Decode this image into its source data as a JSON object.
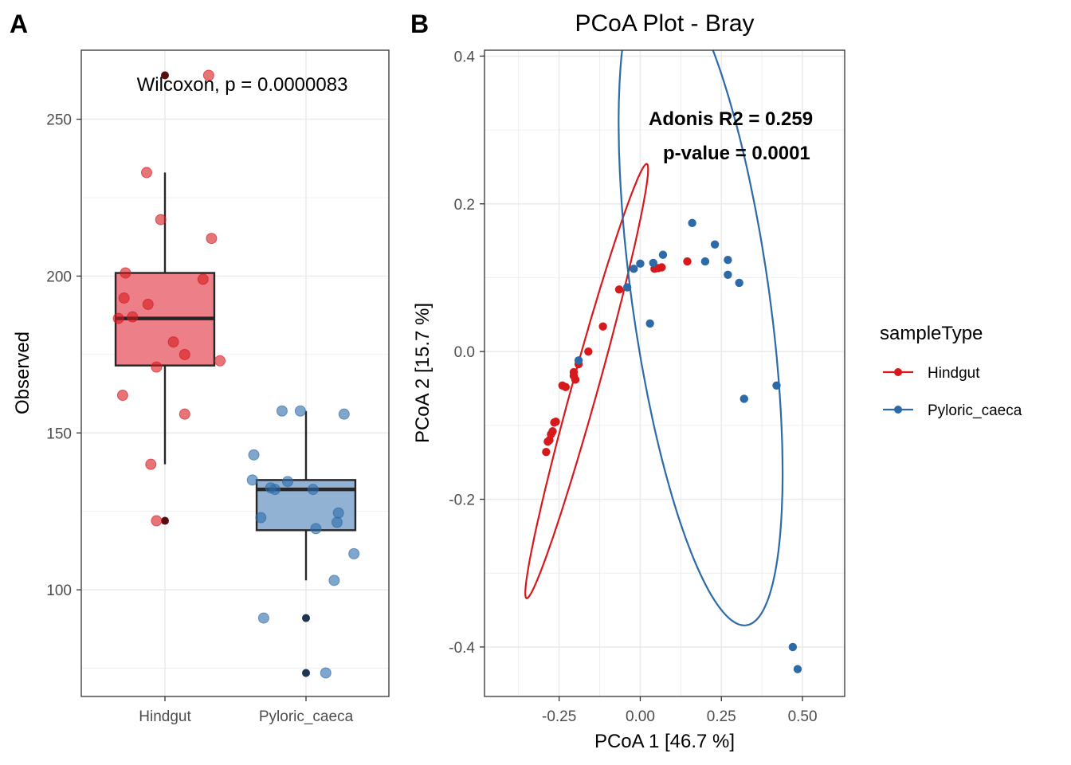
{
  "panel_a": {
    "tag": "A",
    "annotation": "Wilcoxon, p = 0.0000083",
    "ylabel": "Observed"
  },
  "panel_b": {
    "tag": "B",
    "title": "PCoA Plot - Bray",
    "xlabel": "PCoA 1 [46.7 %]",
    "ylabel": "PCoA 2 [15.7 %]",
    "stat_r2": "Adonis R2 = 0.259",
    "stat_p": "p-value = 0.0001"
  },
  "legend": {
    "title": "sampleType",
    "items": [
      {
        "label": "Hindgut",
        "color": "#d7191c"
      },
      {
        "label": "Pyloric_caeca",
        "color": "#2c6aa8"
      }
    ]
  },
  "colors": {
    "hindgut": "#d7191c",
    "pyloric": "#2c6aa8",
    "hindgut_box_fill": "#ec7f88",
    "pyloric_box_fill": "#92b2d4",
    "hindgut_outlier": "#5a0d0f",
    "pyloric_outlier": "#1b3552",
    "grid": "#ebebeb"
  },
  "chart_data": [
    {
      "type": "box",
      "categories": [
        "Hindgut",
        "Pyloric_caeca"
      ],
      "xlabel": "",
      "ylabel": "Observed",
      "ylim": [
        66,
        272
      ],
      "yticks": [
        100,
        150,
        200,
        250
      ],
      "annotation": "Wilcoxon, p = 0.0000083",
      "boxes": [
        {
          "category": "Hindgut",
          "lower_whisker": 140,
          "q1": 171.5,
          "median": 186.5,
          "q3": 201,
          "upper_whisker": 233,
          "outliers": [
            122,
            264
          ]
        },
        {
          "category": "Pyloric_caeca",
          "lower_whisker": 103,
          "q1": 119,
          "median": 132,
          "q3": 135,
          "upper_whisker": 157,
          "outliers": [
            91,
            73.5
          ]
        }
      ],
      "points": [
        {
          "category": "Hindgut",
          "x_offset": -0.33,
          "y": 186.5
        },
        {
          "category": "Hindgut",
          "x_offset": -0.28,
          "y": 201
        },
        {
          "category": "Hindgut",
          "x_offset": -0.29,
          "y": 193
        },
        {
          "category": "Hindgut",
          "x_offset": -0.23,
          "y": 187
        },
        {
          "category": "Hindgut",
          "x_offset": -0.12,
          "y": 191
        },
        {
          "category": "Hindgut",
          "x_offset": -0.13,
          "y": 233
        },
        {
          "category": "Hindgut",
          "x_offset": -0.03,
          "y": 218
        },
        {
          "category": "Hindgut",
          "x_offset": 0.33,
          "y": 212
        },
        {
          "category": "Hindgut",
          "x_offset": 0.27,
          "y": 199
        },
        {
          "category": "Hindgut",
          "x_offset": 0.06,
          "y": 179
        },
        {
          "category": "Hindgut",
          "x_offset": 0.14,
          "y": 175
        },
        {
          "category": "Hindgut",
          "x_offset": -0.06,
          "y": 171
        },
        {
          "category": "Hindgut",
          "x_offset": 0.39,
          "y": 173
        },
        {
          "category": "Hindgut",
          "x_offset": -0.3,
          "y": 162
        },
        {
          "category": "Hindgut",
          "x_offset": 0.14,
          "y": 156
        },
        {
          "category": "Hindgut",
          "x_offset": -0.1,
          "y": 140
        },
        {
          "category": "Hindgut",
          "x_offset": -0.06,
          "y": 122
        },
        {
          "category": "Hindgut",
          "x_offset": 0.31,
          "y": 264
        },
        {
          "category": "Pyloric_caeca",
          "x_offset": -0.17,
          "y": 157
        },
        {
          "category": "Pyloric_caeca",
          "x_offset": -0.04,
          "y": 157
        },
        {
          "category": "Pyloric_caeca",
          "x_offset": 0.27,
          "y": 156
        },
        {
          "category": "Pyloric_caeca",
          "x_offset": -0.37,
          "y": 143
        },
        {
          "category": "Pyloric_caeca",
          "x_offset": -0.38,
          "y": 135
        },
        {
          "category": "Pyloric_caeca",
          "x_offset": -0.13,
          "y": 134.5
        },
        {
          "category": "Pyloric_caeca",
          "x_offset": -0.25,
          "y": 132.5
        },
        {
          "category": "Pyloric_caeca",
          "x_offset": -0.22,
          "y": 132
        },
        {
          "category": "Pyloric_caeca",
          "x_offset": 0.05,
          "y": 132
        },
        {
          "category": "Pyloric_caeca",
          "x_offset": 0.23,
          "y": 124.5
        },
        {
          "category": "Pyloric_caeca",
          "x_offset": -0.32,
          "y": 123
        },
        {
          "category": "Pyloric_caeca",
          "x_offset": 0.22,
          "y": 121.5
        },
        {
          "category": "Pyloric_caeca",
          "x_offset": 0.07,
          "y": 119.5
        },
        {
          "category": "Pyloric_caeca",
          "x_offset": 0.34,
          "y": 111.5
        },
        {
          "category": "Pyloric_caeca",
          "x_offset": 0.2,
          "y": 103
        },
        {
          "category": "Pyloric_caeca",
          "x_offset": -0.3,
          "y": 91
        },
        {
          "category": "Pyloric_caeca",
          "x_offset": 0.14,
          "y": 73.5
        }
      ]
    },
    {
      "type": "scatter",
      "title": "PCoA Plot - Bray",
      "xlabel": "PCoA 1 [46.7 %]",
      "ylabel": "PCoA 2 [15.7 %]",
      "xlim": [
        -0.48,
        0.63
      ],
      "ylim": [
        -0.467,
        0.408
      ],
      "xticks": [
        -0.25,
        0.0,
        0.25,
        0.5
      ],
      "xtick_labels": [
        "-0.25",
        "0.00",
        "0.25",
        "0.50"
      ],
      "yticks": [
        -0.4,
        -0.2,
        0.0,
        0.2,
        0.4
      ],
      "ytick_labels": [
        "-0.4",
        "-0.2",
        "0.0",
        "0.2",
        "0.4"
      ],
      "legend_position": "right",
      "series": [
        {
          "name": "Hindgut",
          "points": [
            [
              0.145,
              0.122
            ],
            [
              0.066,
              0.114
            ],
            [
              0.055,
              0.113
            ],
            [
              0.044,
              0.112
            ],
            [
              -0.065,
              0.084
            ],
            [
              -0.115,
              0.034
            ],
            [
              -0.16,
              0.0
            ],
            [
              -0.19,
              -0.017
            ],
            [
              -0.205,
              -0.028
            ],
            [
              -0.205,
              -0.033
            ],
            [
              -0.2,
              -0.038
            ],
            [
              -0.24,
              -0.046
            ],
            [
              -0.23,
              -0.048
            ],
            [
              -0.26,
              -0.095
            ],
            [
              -0.265,
              -0.096
            ],
            [
              -0.27,
              -0.108
            ],
            [
              -0.275,
              -0.112
            ],
            [
              -0.28,
              -0.12
            ],
            [
              -0.285,
              -0.122
            ],
            [
              -0.29,
              -0.136
            ]
          ]
        },
        {
          "name": "Pyloric_caeca",
          "points": [
            [
              0.16,
              0.174
            ],
            [
              0.23,
              0.145
            ],
            [
              0.07,
              0.131
            ],
            [
              0.27,
              0.124
            ],
            [
              0.2,
              0.122
            ],
            [
              0.04,
              0.12
            ],
            [
              0.0,
              0.119
            ],
            [
              -0.02,
              0.112
            ],
            [
              -0.04,
              0.087
            ],
            [
              0.03,
              0.038
            ],
            [
              0.27,
              0.104
            ],
            [
              0.305,
              0.093
            ],
            [
              -0.19,
              -0.012
            ],
            [
              0.42,
              -0.046
            ],
            [
              0.32,
              -0.064
            ],
            [
              0.47,
              -0.4
            ],
            [
              0.485,
              -0.43
            ]
          ]
        }
      ],
      "ellipses": [
        {
          "series": "Hindgut",
          "center": [
            -0.165,
            -0.04
          ],
          "semi_axes": [
            0.348,
            0.035
          ],
          "rotation_deg": 57.5
        },
        {
          "series": "Pyloric_caeca",
          "center": [
            0.186,
            0.073
          ],
          "semi_axes": [
            0.469,
            0.202
          ],
          "rotation_deg": -69
        }
      ],
      "annotations": [
        "Adonis R2 = 0.259",
        "p-value = 0.0001"
      ]
    }
  ]
}
